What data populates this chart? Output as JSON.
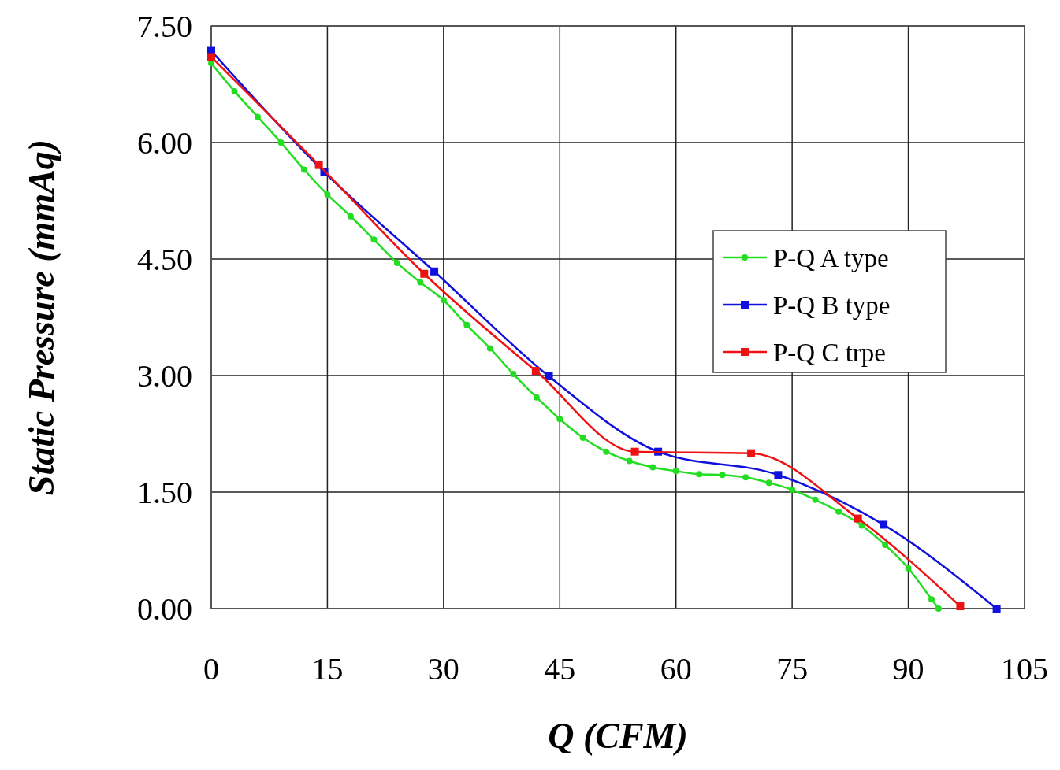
{
  "chart_data": {
    "type": "line",
    "xlabel": "Q (CFM)",
    "ylabel": "Static Pressure (mmAq)",
    "xlim": [
      0,
      105
    ],
    "xticks": [
      0,
      15,
      30,
      45,
      60,
      75,
      90,
      105
    ],
    "ylim": [
      0,
      7.5
    ],
    "yticks": [
      {
        "value": 0,
        "label": "0.00"
      },
      {
        "value": 1.5,
        "label": "1.50"
      },
      {
        "value": 3,
        "label": "3.00"
      },
      {
        "value": 4.5,
        "label": "4.50"
      },
      {
        "value": 6,
        "label": "6.00"
      },
      {
        "value": 7.5,
        "label": "7.50"
      }
    ],
    "grid": true,
    "legend": "right",
    "line_style": "solid",
    "series": [
      {
        "name": "P-Q A type",
        "color": "#22dd22",
        "marker": "circle",
        "x": [
          0,
          3,
          6,
          9,
          12,
          15,
          18,
          21,
          24,
          27,
          30,
          33,
          36,
          39,
          42,
          45,
          48,
          51,
          54,
          57,
          60,
          63,
          66,
          69,
          72,
          75,
          78,
          81,
          84,
          87,
          90,
          93,
          93.9
        ],
        "values": [
          7.02,
          6.66,
          6.33,
          6.0,
          5.65,
          5.33,
          5.05,
          4.75,
          4.45,
          4.2,
          3.97,
          3.65,
          3.35,
          3.02,
          2.72,
          2.44,
          2.2,
          2.02,
          1.9,
          1.82,
          1.77,
          1.73,
          1.72,
          1.69,
          1.62,
          1.53,
          1.4,
          1.25,
          1.07,
          0.82,
          0.52,
          0.12,
          0
        ]
      },
      {
        "name": "P-Q B type",
        "color": "#1010dd",
        "marker": "square",
        "x": [
          0,
          14.6,
          28.8,
          43.6,
          57.7,
          73.2,
          86.8,
          101.4
        ],
        "values": [
          7.18,
          5.62,
          4.34,
          2.99,
          2.02,
          1.72,
          1.08,
          0
        ]
      },
      {
        "name": "P-Q C trpe",
        "color": "#ee1111",
        "marker": "square",
        "x": [
          0,
          13.9,
          27.5,
          41.9,
          54.7,
          69.7,
          83.5,
          96.7
        ],
        "values": [
          7.1,
          5.71,
          4.31,
          3.06,
          2.02,
          2.0,
          1.16,
          0.03
        ]
      }
    ]
  }
}
